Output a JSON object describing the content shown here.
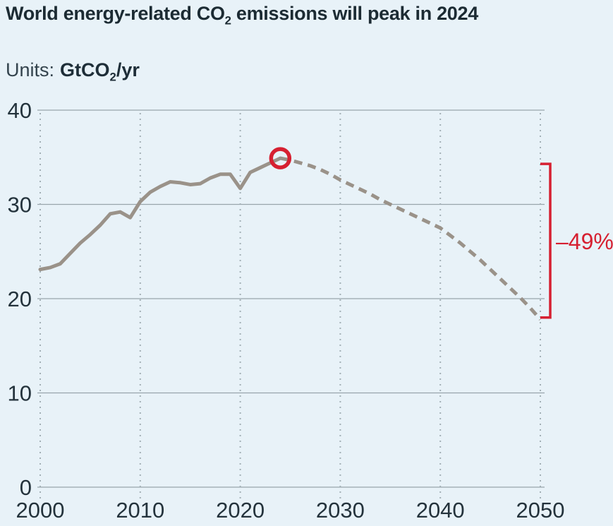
{
  "header": {
    "title_pre": "World energy-related CO",
    "title_sub": "2",
    "title_post": " emissions will peak in 2024",
    "units_label": "Units:",
    "units_value_pre": "GtCO",
    "units_value_sub": "2",
    "units_value_post": "/yr"
  },
  "colors": {
    "background": "#e8f2f8",
    "line": "#9a9289",
    "accent_red": "#d62031",
    "grid": "#98a5ac",
    "grid_dotted": "#a3b0b6",
    "title_text": "#1c2b33",
    "axis_text": "#24333c"
  },
  "chart_data": {
    "type": "line",
    "title": "World energy-related CO2 emissions will peak in 2024",
    "units": "GtCO2/yr",
    "xlim": [
      2000,
      2050
    ],
    "ylim": [
      0,
      40
    ],
    "xticks": [
      2000,
      2010,
      2020,
      2030,
      2040,
      2050
    ],
    "yticks": [
      0,
      10,
      20,
      30,
      40
    ],
    "grid": {
      "horizontal": "solid",
      "vertical": "dotted"
    },
    "legend": "none",
    "series": [
      {
        "name": "historical emissions",
        "style": "solid",
        "x": [
          2000,
          2001,
          2002,
          2003,
          2004,
          2005,
          2006,
          2007,
          2008,
          2009,
          2010,
          2011,
          2012,
          2013,
          2014,
          2015,
          2016,
          2017,
          2018,
          2019,
          2020,
          2021,
          2022,
          2023,
          2024
        ],
        "values": [
          23.1,
          23.3,
          23.7,
          24.8,
          25.9,
          26.8,
          27.8,
          29.0,
          29.2,
          28.6,
          30.3,
          31.3,
          31.9,
          32.4,
          32.3,
          32.1,
          32.2,
          32.8,
          33.2,
          33.2,
          31.7,
          33.4,
          33.9,
          34.4,
          34.9
        ]
      },
      {
        "name": "forecast emissions",
        "style": "dashed",
        "x": [
          2024,
          2025,
          2026,
          2027,
          2028,
          2029,
          2030,
          2031,
          2032,
          2033,
          2034,
          2035,
          2036,
          2037,
          2038,
          2039,
          2040,
          2041,
          2042,
          2043,
          2044,
          2045,
          2046,
          2047,
          2048,
          2049,
          2050
        ],
        "values": [
          34.9,
          34.7,
          34.4,
          34.1,
          33.7,
          33.2,
          32.6,
          32.1,
          31.6,
          31.1,
          30.5,
          30.0,
          29.5,
          29.0,
          28.5,
          28.0,
          27.5,
          26.7,
          25.9,
          25.0,
          24.1,
          23.1,
          22.1,
          21.1,
          20.1,
          19.0,
          17.8
        ]
      }
    ],
    "marker": {
      "name": "peak",
      "year": 2024,
      "value": 34.9
    },
    "annotation": {
      "type": "bracket",
      "label": "–49%",
      "value_top": 34.3,
      "value_bottom": 18.0
    }
  }
}
